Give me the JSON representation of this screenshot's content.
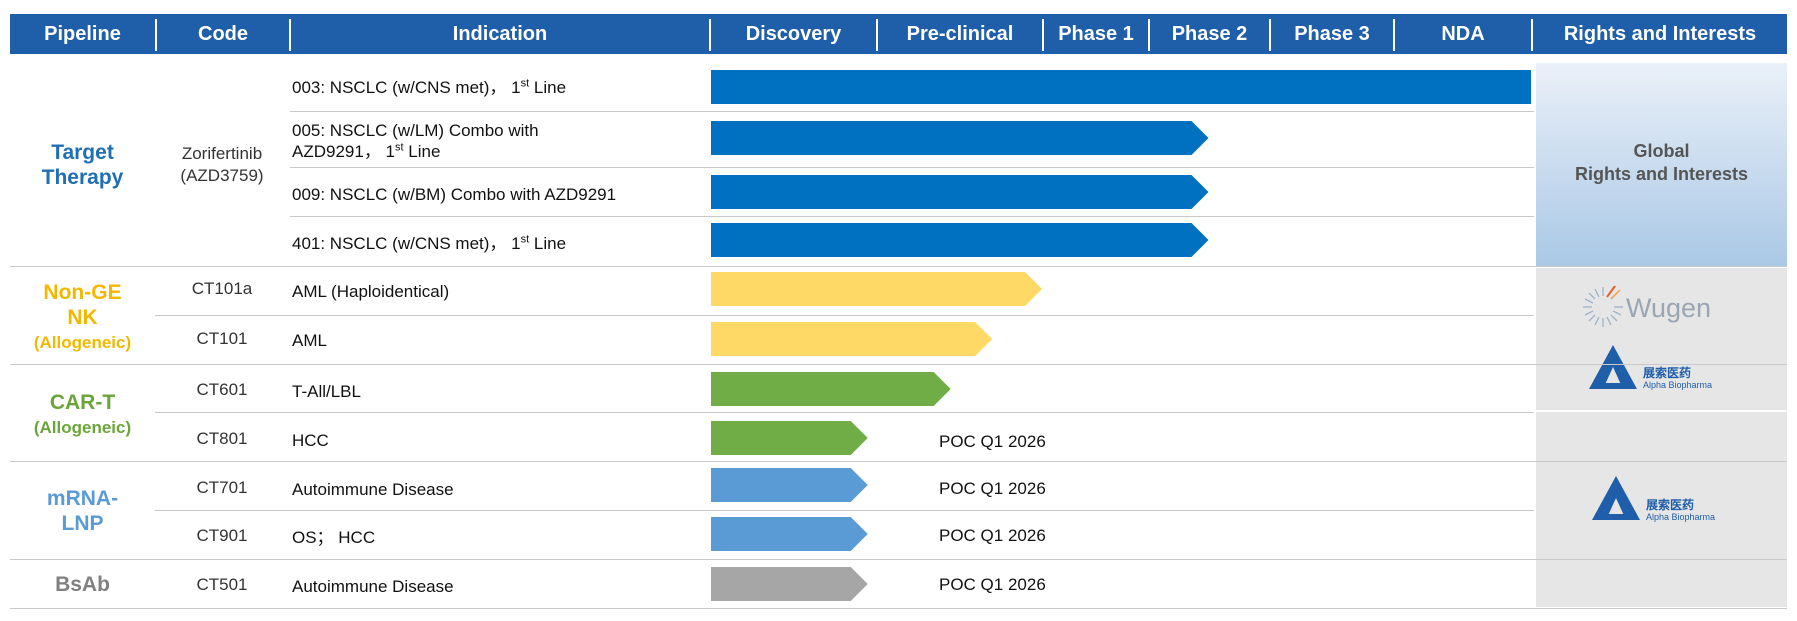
{
  "header": {
    "pipeline": "Pipeline",
    "code": "Code",
    "indication": "Indication",
    "stages": [
      "Discovery",
      "Pre-clinical",
      "Phase 1",
      "Phase 2",
      "Phase 3",
      "NDA"
    ],
    "rights": "Rights and Interests"
  },
  "categories": {
    "target": "Target Therapy",
    "nonge_a": "Non-GE",
    "nonge_b": "NK",
    "nonge_c": "(Allogeneic)",
    "cart_a": "CAR-T",
    "cart_b": "(Allogeneic)",
    "mrna_a": "mRNA-",
    "mrna_b": "LNP",
    "bsab": "BsAb"
  },
  "codes": {
    "zori_a": "Zorifertinib",
    "zori_b": "(AZD3759)",
    "ct101a": "CT101a",
    "ct101": "CT101",
    "ct601": "CT601",
    "ct801": "CT801",
    "ct701": "CT701",
    "ct901": "CT901",
    "ct501": "CT501"
  },
  "indications": {
    "r003_a": "003: NSCLC (w/CNS met)， 1",
    "r003_sup": "st",
    "r003_b": " Line",
    "r005_a": "005: NSCLC (w/LM) Combo with",
    "r005_b": "AZD9291， 1",
    "r005_sup": "st",
    "r005_c": " Line",
    "r009": "009: NSCLC (w/BM) Combo with AZD9291",
    "r401_a": "401: NSCLC (w/CNS met)， 1",
    "r401_sup": "st",
    "r401_b": " Line",
    "ct101a": "AML (Haploidentical)",
    "ct101": "AML",
    "ct601": "T-All/LBL",
    "ct801": "HCC",
    "ct701": "Autoimmune Disease",
    "ct901": "OS； HCC",
    "ct501": "Autoimmune Disease"
  },
  "poc_label": "POC Q1 2026",
  "rights_panel": {
    "global_a": "Global",
    "global_b": "Rights and Interests",
    "wugen": "Wugen",
    "alpha_cn": "展索医药",
    "alpha_en": "Alpha Biopharma"
  },
  "colors": {
    "header": "#1f5ea9",
    "target": "#0070c0",
    "nk": "#ffd966",
    "cart": "#70ad47",
    "mrna": "#5b9bd5",
    "bsab": "#a6a6a6",
    "cat_target": "#1f6fb5",
    "cat_nk": "#f2b800",
    "cat_cart": "#6aa539",
    "cat_mrna": "#5b9bd5",
    "cat_bsab": "#808080"
  },
  "chart_data": {
    "type": "bar",
    "stages": [
      "Discovery",
      "Pre-clinical",
      "Phase 1",
      "Phase 2",
      "Phase 3",
      "NDA"
    ],
    "series": [
      {
        "code": "Zorifertinib (AZD3759)",
        "indication": "003: NSCLC (w/CNS met), 1st Line",
        "progress_end_stage": "NDA",
        "end_position": 6.0,
        "color": "#0070c0"
      },
      {
        "code": "Zorifertinib (AZD3759)",
        "indication": "005: NSCLC (w/LM) Combo with AZD9291, 1st Line",
        "progress_end_stage": "Phase 2",
        "end_position": 3.5,
        "color": "#0070c0"
      },
      {
        "code": "Zorifertinib (AZD3759)",
        "indication": "009: NSCLC (w/BM) Combo with AZD9291",
        "progress_end_stage": "Phase 2",
        "end_position": 3.5,
        "color": "#0070c0"
      },
      {
        "code": "Zorifertinib (AZD3759)",
        "indication": "401: NSCLC (w/CNS met), 1st Line",
        "progress_end_stage": "Phase 2",
        "end_position": 3.5,
        "color": "#0070c0"
      },
      {
        "code": "CT101a",
        "indication": "AML (Haploidentical)",
        "progress_end_stage": "Phase 1",
        "end_position": 2.0,
        "color": "#ffd966"
      },
      {
        "code": "CT101",
        "indication": "AML",
        "progress_end_stage": "Pre-clinical",
        "end_position": 1.7,
        "color": "#ffd966"
      },
      {
        "code": "CT601",
        "indication": "T-All/LBL",
        "progress_end_stage": "Pre-clinical",
        "end_position": 1.45,
        "color": "#70ad47"
      },
      {
        "code": "CT801",
        "indication": "HCC",
        "progress_end_stage": "Discovery",
        "end_position": 0.95,
        "color": "#70ad47",
        "annotation": "POC Q1 2026"
      },
      {
        "code": "CT701",
        "indication": "Autoimmune Disease",
        "progress_end_stage": "Discovery",
        "end_position": 0.95,
        "color": "#5b9bd5",
        "annotation": "POC Q1 2026"
      },
      {
        "code": "CT901",
        "indication": "OS; HCC",
        "progress_end_stage": "Discovery",
        "end_position": 0.95,
        "color": "#5b9bd5",
        "annotation": "POC Q1 2026"
      },
      {
        "code": "CT501",
        "indication": "Autoimmune Disease",
        "progress_end_stage": "Discovery",
        "end_position": 0.95,
        "color": "#a6a6a6",
        "annotation": "POC Q1 2026"
      }
    ]
  }
}
